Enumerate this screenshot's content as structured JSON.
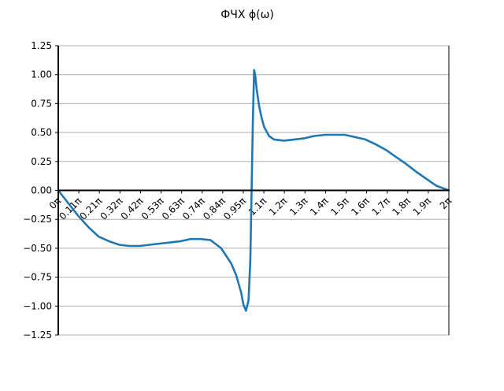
{
  "chart_data": {
    "type": "line",
    "title": "ФЧХ ϕ(ω)",
    "xlabel": "",
    "ylabel": "",
    "xlim": [
      0,
      6.2832
    ],
    "ylim": [
      -1.25,
      1.25
    ],
    "grid": "horizontal",
    "ytick_labels": [
      "1.25",
      "1.00",
      "0.75",
      "0.50",
      "0.25",
      "0.00",
      "−0.25",
      "−0.50",
      "−0.75",
      "−1.00",
      "−1.25"
    ],
    "ytick_values": [
      1.25,
      1.0,
      0.75,
      0.5,
      0.25,
      0.0,
      -0.25,
      -0.5,
      -0.75,
      -1.0,
      -1.25
    ],
    "xtick_labels": [
      "0π",
      "0.11π",
      "0.21π",
      "0.32π",
      "0.42π",
      "0.53π",
      "0.63π",
      "0.74π",
      "0.84π",
      "0.95π",
      "1.1π",
      "1.2π",
      "1.3π",
      "1.4π",
      "1.5π",
      "1.6π",
      "1.7π",
      "1.8π",
      "1.9π",
      "2π"
    ],
    "xtick_values": [
      0,
      0.3307,
      0.6614,
      0.9921,
      1.3228,
      1.6535,
      1.9842,
      2.3149,
      2.6456,
      2.9763,
      3.3069,
      3.6376,
      3.9683,
      4.299,
      4.6297,
      4.9604,
      5.2911,
      5.6218,
      5.9525,
      6.2832
    ],
    "series": [
      {
        "color": "#1f77b4",
        "x": [
          0.0,
          0.16,
          0.32,
          0.49,
          0.65,
          0.82,
          0.98,
          1.14,
          1.31,
          1.47,
          1.63,
          1.8,
          1.96,
          2.13,
          2.29,
          2.45,
          2.62,
          2.78,
          2.86,
          2.94,
          2.98,
          3.02,
          3.06,
          3.09,
          3.11,
          3.13,
          3.15,
          3.17,
          3.19,
          3.23,
          3.27,
          3.31,
          3.39,
          3.47,
          3.63,
          3.8,
          3.96,
          4.12,
          4.29,
          4.45,
          4.61,
          4.78,
          4.94,
          5.1,
          5.27,
          5.43,
          5.59,
          5.76,
          5.92,
          6.08,
          6.2832
        ],
        "y": [
          0.0,
          -0.11,
          -0.22,
          -0.32,
          -0.4,
          -0.44,
          -0.47,
          -0.48,
          -0.48,
          -0.47,
          -0.46,
          -0.45,
          -0.44,
          -0.42,
          -0.42,
          -0.43,
          -0.5,
          -0.63,
          -0.73,
          -0.88,
          -0.99,
          -1.04,
          -0.95,
          -0.6,
          0.0,
          0.6,
          1.04,
          0.99,
          0.88,
          0.73,
          0.63,
          0.55,
          0.47,
          0.44,
          0.43,
          0.44,
          0.45,
          0.47,
          0.48,
          0.48,
          0.48,
          0.46,
          0.44,
          0.4,
          0.35,
          0.29,
          0.23,
          0.16,
          0.1,
          0.04,
          0.0
        ]
      }
    ]
  }
}
